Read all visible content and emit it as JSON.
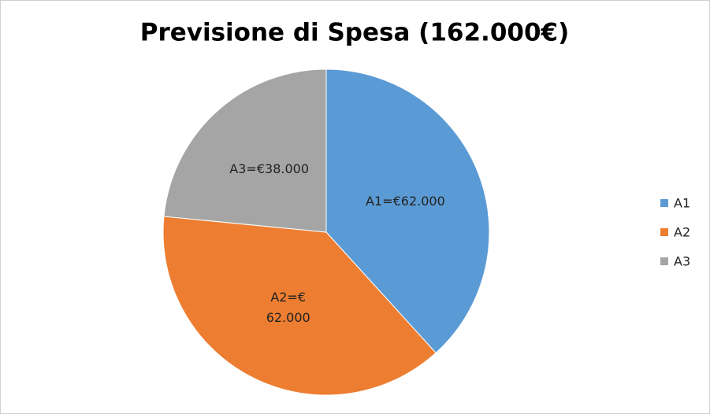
{
  "chart_data": {
    "type": "pie",
    "title": "Previsione di Spesa (162.000€)",
    "categories": [
      "A1",
      "A2",
      "A3"
    ],
    "values": [
      62000,
      62000,
      38000
    ],
    "value_labels": [
      "A1=€62.000",
      "A2=€ 62.000",
      "A3=€38.000"
    ],
    "colors": [
      "#5b9bd5",
      "#ed7d31",
      "#a5a5a5"
    ],
    "legend": "right"
  }
}
